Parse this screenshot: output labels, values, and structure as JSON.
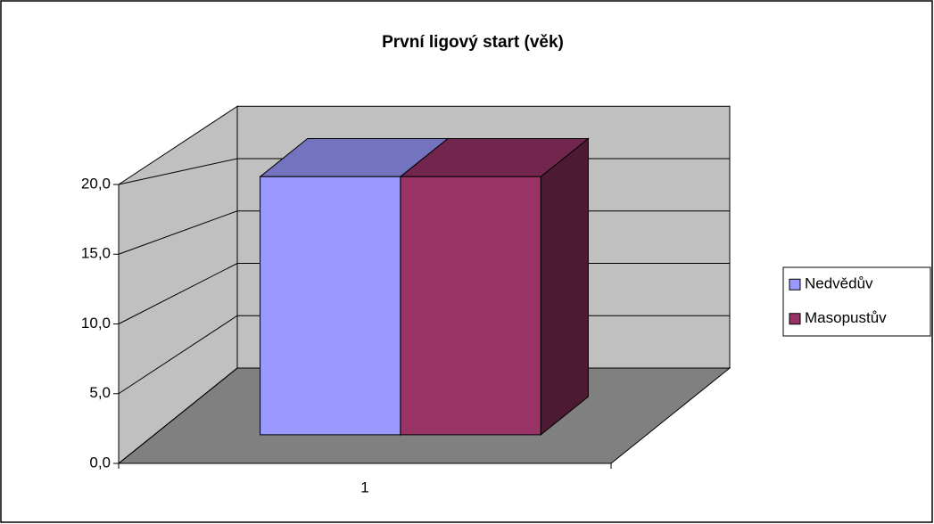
{
  "chart_data": {
    "type": "bar3d",
    "title": "První ligový start (věk)",
    "categories": [
      "1"
    ],
    "series": [
      {
        "name": "Nedvědův",
        "color": "#9999ff",
        "values": [
          20
        ]
      },
      {
        "name": "Masopustův",
        "color": "#993366",
        "values": [
          20
        ]
      }
    ],
    "ylim": [
      0,
      25
    ],
    "yticks": [
      {
        "value": 0,
        "label": "0,0"
      },
      {
        "value": 5,
        "label": "5,0"
      },
      {
        "value": 10,
        "label": "10,0"
      },
      {
        "value": 15,
        "label": "15,0"
      },
      {
        "value": 20,
        "label": "20,0"
      }
    ],
    "grid": true,
    "legend": "right"
  }
}
